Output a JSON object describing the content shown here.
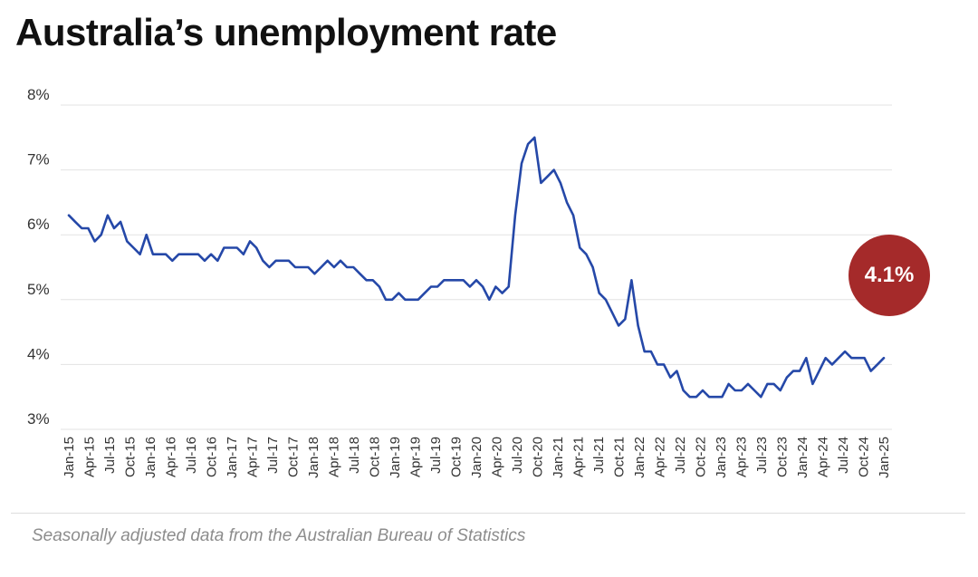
{
  "title": "Australia’s unemployment rate",
  "source": "Seasonally adjusted data from the Australian Bureau of Statistics",
  "badge": {
    "label": "4.1%",
    "color": "#a52a2a"
  },
  "colors": {
    "line": "#2548a8",
    "grid": "#e3e3e3",
    "text": "#333333"
  },
  "chart_data": {
    "type": "line",
    "title": "Australia’s unemployment rate",
    "xlabel": "",
    "ylabel": "",
    "ylim": [
      3,
      8
    ],
    "yticks": [
      "3%",
      "4%",
      "5%",
      "6%",
      "7%",
      "8%"
    ],
    "grid": true,
    "xtick_labels": [
      "Jan-15",
      "Apr-15",
      "Jul-15",
      "Oct-15",
      "Jan-16",
      "Apr-16",
      "Jul-16",
      "Oct-16",
      "Jan-17",
      "Apr-17",
      "Jul-17",
      "Oct-17",
      "Jan-18",
      "Apr-18",
      "Jul-18",
      "Oct-18",
      "Jan-19",
      "Apr-19",
      "Jul-19",
      "Oct-19",
      "Jan-20",
      "Apr-20",
      "Jul-20",
      "Oct-20",
      "Jan-21",
      "Apr-21",
      "Jul-21",
      "Oct-21",
      "Jan-22",
      "Apr-22",
      "Jul-22",
      "Oct-22",
      "Jan-23",
      "Apr-23",
      "Jul-23",
      "Oct-23",
      "Jan-24",
      "Apr-24",
      "Jul-24",
      "Oct-24",
      "Jan-25"
    ],
    "x_start": "Jan-15",
    "x_end": "Jan-25",
    "series": [
      {
        "values": [
          6.3,
          6.2,
          6.1,
          6.1,
          5.9,
          6.0,
          6.3,
          6.1,
          6.2,
          5.9,
          5.8,
          5.7,
          6.0,
          5.7,
          5.7,
          5.7,
          5.6,
          5.7,
          5.7,
          5.7,
          5.7,
          5.6,
          5.7,
          5.6,
          5.8,
          5.8,
          5.8,
          5.7,
          5.9,
          5.8,
          5.6,
          5.5,
          5.6,
          5.6,
          5.6,
          5.5,
          5.5,
          5.5,
          5.4,
          5.5,
          5.6,
          5.5,
          5.6,
          5.5,
          5.5,
          5.4,
          5.3,
          5.3,
          5.2,
          5.0,
          5.0,
          5.1,
          5.0,
          5.0,
          5.0,
          5.1,
          5.2,
          5.2,
          5.3,
          5.3,
          5.3,
          5.3,
          5.2,
          5.3,
          5.2,
          5.0,
          5.2,
          5.1,
          5.2,
          6.3,
          7.1,
          7.4,
          7.5,
          6.8,
          6.9,
          7.0,
          6.8,
          6.5,
          6.3,
          5.8,
          5.7,
          5.5,
          5.1,
          5.0,
          4.8,
          4.6,
          4.7,
          5.3,
          4.6,
          4.2,
          4.2,
          4.0,
          4.0,
          3.8,
          3.9,
          3.6,
          3.5,
          3.5,
          3.6,
          3.5,
          3.5,
          3.5,
          3.7,
          3.6,
          3.6,
          3.7,
          3.6,
          3.5,
          3.7,
          3.7,
          3.6,
          3.8,
          3.9,
          3.9,
          4.1,
          3.7,
          3.9,
          4.1,
          4.0,
          4.1,
          4.2,
          4.1,
          4.1,
          4.1,
          3.9,
          4.0,
          4.1
        ]
      }
    ]
  }
}
